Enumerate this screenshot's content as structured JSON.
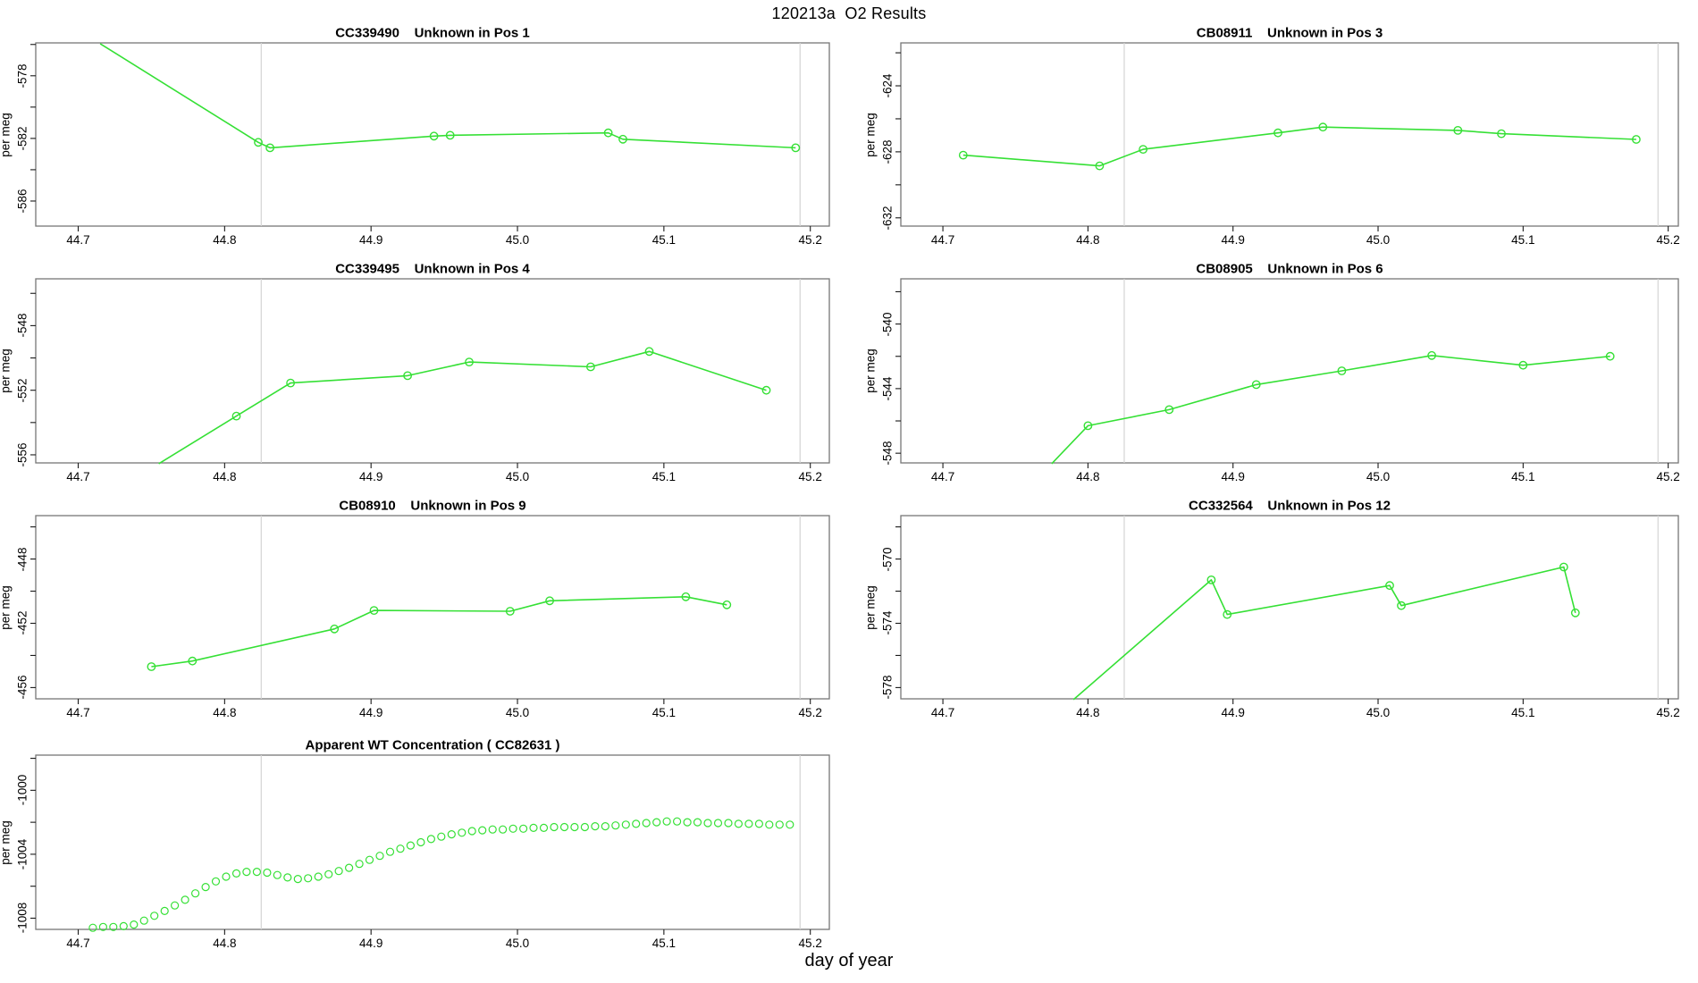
{
  "figure": {
    "title": "120213a  O2 Results",
    "xlabel": "day of year",
    "background": "#ffffff",
    "line_color": "#35e035",
    "vline_color": "#d4d4d4",
    "axis_color": "#1a1a1a",
    "box_color": "#777777",
    "x_tick_values": [
      44.7,
      44.8,
      44.9,
      45.0,
      45.1,
      45.2
    ],
    "x_tick_labels": [
      "44.7",
      "44.8",
      "44.9",
      "45.0",
      "45.1",
      "45.2"
    ],
    "vlines": [
      44.825,
      45.193
    ]
  },
  "chart_data": [
    {
      "type": "line",
      "title": "CC339490    Unknown in Pos 1",
      "ylabel": "per meg",
      "ylim": [
        -587.6,
        -575.9
      ],
      "yticks": [
        -586,
        -584,
        -582,
        -580,
        -578,
        -576
      ],
      "ytick_labels": {
        "-586": "-586",
        "-582": "-582",
        "-578": "-578"
      },
      "prefix_point": [
        44.715,
        -575.95
      ],
      "x": [
        44.823,
        44.831,
        44.943,
        44.954,
        45.062,
        45.072,
        45.19
      ],
      "y": [
        -582.25,
        -582.6,
        -581.85,
        -581.8,
        -581.65,
        -582.05,
        -582.6
      ]
    },
    {
      "type": "line",
      "title": "CB08911    Unknown in Pos 3",
      "ylabel": "per meg",
      "ylim": [
        -632.5,
        -621.4
      ],
      "yticks": [
        -632,
        -630,
        -628,
        -626,
        -624,
        -622
      ],
      "ytick_labels": {
        "-632": "-632",
        "-628": "-628",
        "-624": "-624"
      },
      "prefix_point": null,
      "x": [
        44.714,
        44.808,
        44.838,
        44.931,
        44.962,
        45.055,
        45.085,
        45.178
      ],
      "y": [
        -628.2,
        -628.85,
        -627.85,
        -626.85,
        -626.5,
        -626.7,
        -626.9,
        -627.25
      ]
    },
    {
      "type": "line",
      "title": "CC339495    Unknown in Pos 4",
      "ylabel": "per meg",
      "ylim": [
        -556.5,
        -545.1
      ],
      "yticks": [
        -556,
        -554,
        -552,
        -550,
        -548,
        -546
      ],
      "ytick_labels": {
        "-556": "-556",
        "-552": "-552",
        "-548": "-548"
      },
      "prefix_point": [
        44.755,
        -556.55
      ],
      "x": [
        44.808,
        44.845,
        44.925,
        44.967,
        45.05,
        45.09,
        45.17
      ],
      "y": [
        -553.6,
        -551.55,
        -551.1,
        -550.25,
        -550.55,
        -549.6,
        -552.0
      ]
    },
    {
      "type": "line",
      "title": "CB08905    Unknown in Pos 6",
      "ylabel": "per meg",
      "ylim": [
        -548.6,
        -537.2
      ],
      "yticks": [
        -548,
        -546,
        -544,
        -542,
        -540,
        -538
      ],
      "ytick_labels": {
        "-548": "-548",
        "-544": "-544",
        "-540": "-540"
      },
      "prefix_point": [
        44.775,
        -548.65
      ],
      "x": [
        44.8,
        44.856,
        44.916,
        44.975,
        45.037,
        45.1,
        45.16
      ],
      "y": [
        -546.3,
        -545.3,
        -543.75,
        -542.9,
        -541.95,
        -542.55,
        -542.0
      ]
    },
    {
      "type": "line",
      "title": "CB08910    Unknown in Pos 9",
      "ylabel": "per meg",
      "ylim": [
        -456.7,
        -445.3
      ],
      "yticks": [
        -456,
        -454,
        -452,
        -450,
        -448,
        -446
      ],
      "ytick_labels": {
        "-456": "-456",
        "-452": "-452",
        "-448": "-448"
      },
      "prefix_point": null,
      "x": [
        44.75,
        44.778,
        44.875,
        44.902,
        44.995,
        45.022,
        45.115,
        45.143
      ],
      "y": [
        -454.7,
        -454.35,
        -452.35,
        -451.2,
        -451.25,
        -450.6,
        -450.35,
        -450.85
      ]
    },
    {
      "type": "line",
      "title": "CC332564    Unknown in Pos 12",
      "ylabel": "per meg",
      "ylim": [
        -578.7,
        -567.3
      ],
      "yticks": [
        -578,
        -576,
        -574,
        -572,
        -570,
        -568
      ],
      "ytick_labels": {
        "-578": "-578",
        "-574": "-574",
        "-570": "-570"
      },
      "prefix_point": [
        44.79,
        -578.75
      ],
      "x": [
        44.885,
        44.896,
        45.008,
        45.016,
        45.128,
        45.136
      ],
      "y": [
        -571.3,
        -573.45,
        -571.65,
        -572.9,
        -570.5,
        -573.35
      ]
    },
    {
      "type": "scatter",
      "title": "Apparent WT Concentration ( CC82631 )",
      "ylabel": "per meg",
      "ylim": [
        -1008.7,
        -997.8
      ],
      "yticks": [
        -1008,
        -1006,
        -1004,
        -1002,
        -1000,
        -998
      ],
      "ytick_labels": {
        "-1008": "-1008",
        "-1004": "-1004",
        "-1000": "-1000"
      },
      "prefix_point": null,
      "x": [
        44.71,
        44.717,
        44.724,
        44.731,
        44.738,
        44.745,
        44.752,
        44.759,
        44.766,
        44.773,
        44.78,
        44.787,
        44.794,
        44.801,
        44.808,
        44.815,
        44.822,
        44.829,
        44.836,
        44.843,
        44.85,
        44.857,
        44.864,
        44.871,
        44.878,
        44.885,
        44.892,
        44.899,
        44.906,
        44.913,
        44.92,
        44.927,
        44.934,
        44.941,
        44.948,
        44.955,
        44.962,
        44.969,
        44.976,
        44.983,
        44.99,
        44.997,
        45.004,
        45.011,
        45.018,
        45.025,
        45.032,
        45.039,
        45.046,
        45.053,
        45.06,
        45.067,
        45.074,
        45.081,
        45.088,
        45.095,
        45.102,
        45.109,
        45.116,
        45.123,
        45.13,
        45.137,
        45.144,
        45.151,
        45.158,
        45.165,
        45.172,
        45.179,
        45.186
      ],
      "y": [
        -1008.6,
        -1008.55,
        -1008.55,
        -1008.5,
        -1008.4,
        -1008.15,
        -1007.85,
        -1007.55,
        -1007.2,
        -1006.85,
        -1006.45,
        -1006.05,
        -1005.7,
        -1005.4,
        -1005.2,
        -1005.1,
        -1005.1,
        -1005.15,
        -1005.3,
        -1005.45,
        -1005.55,
        -1005.5,
        -1005.4,
        -1005.25,
        -1005.05,
        -1004.85,
        -1004.6,
        -1004.35,
        -1004.1,
        -1003.85,
        -1003.65,
        -1003.45,
        -1003.25,
        -1003.05,
        -1002.9,
        -1002.75,
        -1002.65,
        -1002.55,
        -1002.5,
        -1002.45,
        -1002.45,
        -1002.4,
        -1002.4,
        -1002.35,
        -1002.35,
        -1002.3,
        -1002.3,
        -1002.3,
        -1002.3,
        -1002.25,
        -1002.25,
        -1002.2,
        -1002.15,
        -1002.1,
        -1002.05,
        -1002.0,
        -1001.95,
        -1001.95,
        -1002.0,
        -1002.0,
        -1002.05,
        -1002.05,
        -1002.05,
        -1002.1,
        -1002.1,
        -1002.1,
        -1002.15,
        -1002.15,
        -1002.15
      ]
    }
  ]
}
